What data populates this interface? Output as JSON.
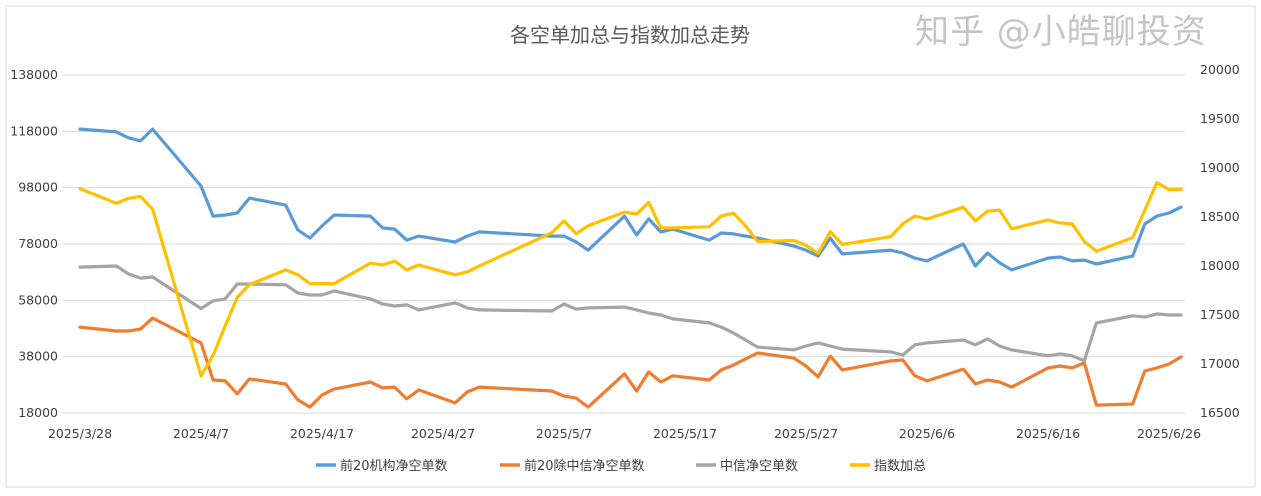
{
  "chart_data": {
    "type": "line",
    "title": "各空单加总与指数加总走势",
    "x": [
      "2025/3/28",
      "2025/3/31",
      "2025/4/1",
      "2025/4/2",
      "2025/4/3",
      "2025/4/7",
      "2025/4/8",
      "2025/4/9",
      "2025/4/10",
      "2025/4/11",
      "2025/4/14",
      "2025/4/15",
      "2025/4/16",
      "2025/4/17",
      "2025/4/18",
      "2025/4/21",
      "2025/4/22",
      "2025/4/23",
      "2025/4/24",
      "2025/4/25",
      "2025/4/28",
      "2025/4/29",
      "2025/4/30",
      "2025/5/6",
      "2025/5/7",
      "2025/5/8",
      "2025/5/9",
      "2025/5/12",
      "2025/5/13",
      "2025/5/14",
      "2025/5/15",
      "2025/5/16",
      "2025/5/19",
      "2025/5/20",
      "2025/5/21",
      "2025/5/22",
      "2025/5/23",
      "2025/5/26",
      "2025/5/27",
      "2025/5/28",
      "2025/5/29",
      "2025/5/30",
      "2025/6/3",
      "2025/6/4",
      "2025/6/5",
      "2025/6/6",
      "2025/6/9",
      "2025/6/10",
      "2025/6/11",
      "2025/6/12",
      "2025/6/13",
      "2025/6/16",
      "2025/6/17",
      "2025/6/18",
      "2025/6/19",
      "2025/6/20",
      "2025/6/23",
      "2025/6/24",
      "2025/6/25",
      "2025/6/26",
      "2025/6/27"
    ],
    "series": [
      {
        "name": "前20机构净空单数",
        "axis": "left",
        "color": "#5B9BD5",
        "values": [
          118800,
          117800,
          115700,
          114600,
          118800,
          98600,
          87900,
          88300,
          89000,
          94300,
          91800,
          83000,
          80100,
          84400,
          88300,
          87900,
          83700,
          83300,
          79400,
          80800,
          78700,
          80800,
          82300,
          80800,
          80800,
          78700,
          75800,
          87900,
          81200,
          86900,
          82300,
          83300,
          79400,
          81900,
          81600,
          80800,
          80100,
          77300,
          75800,
          73700,
          80100,
          74500,
          75800,
          74800,
          73000,
          72000,
          78000,
          70200,
          74800,
          71300,
          68800,
          73000,
          73400,
          72000,
          72300,
          70900,
          73700,
          85100,
          87900,
          89000,
          91100
        ]
      },
      {
        "name": "前20除中信净空单数",
        "axis": "left",
        "color": "#ED7D31",
        "values": [
          48500,
          47100,
          47100,
          47800,
          51700,
          42900,
          29700,
          29400,
          24800,
          30100,
          28300,
          22700,
          20100,
          24400,
          26500,
          29000,
          26900,
          27200,
          23000,
          26200,
          21600,
          25500,
          27200,
          25800,
          24000,
          23300,
          20100,
          31900,
          25800,
          32600,
          29000,
          31200,
          29700,
          33300,
          35000,
          37200,
          39300,
          37500,
          34700,
          30800,
          38200,
          33300,
          36500,
          36800,
          31200,
          29400,
          33600,
          28300,
          29700,
          29000,
          27200,
          34000,
          34700,
          34000,
          35800,
          20800,
          21200,
          32900,
          34000,
          35400,
          37900
        ]
      },
      {
        "name": "中信净空单数",
        "axis": "left",
        "color": "#A5A5A5",
        "values": [
          69800,
          70200,
          67400,
          65900,
          66300,
          55100,
          57800,
          58500,
          63800,
          63800,
          63500,
          60600,
          59900,
          59900,
          61300,
          58500,
          56700,
          56000,
          56400,
          54600,
          57100,
          55300,
          54600,
          54200,
          56700,
          54900,
          55300,
          55600,
          54600,
          53500,
          52800,
          51400,
          50000,
          48500,
          46400,
          43900,
          41400,
          40400,
          41800,
          42900,
          41800,
          40700,
          39700,
          38600,
          42200,
          42900,
          43900,
          42200,
          44300,
          41800,
          40400,
          38300,
          39000,
          38300,
          36500,
          50000,
          52500,
          52100,
          53200,
          52800,
          52800
        ]
      },
      {
        "name": "指数加总",
        "axis": "right",
        "color": "#FFC000",
        "values": [
          18790,
          18640,
          18690,
          18710,
          18580,
          16880,
          17090,
          17390,
          17680,
          17810,
          17960,
          17910,
          17820,
          17820,
          17820,
          18030,
          18010,
          18050,
          17960,
          18010,
          17910,
          17940,
          18000,
          18340,
          18460,
          18330,
          18410,
          18550,
          18530,
          18650,
          18390,
          18390,
          18400,
          18510,
          18540,
          18410,
          18250,
          18260,
          18210,
          18130,
          18350,
          18220,
          18300,
          18430,
          18510,
          18480,
          18600,
          18460,
          18560,
          18570,
          18380,
          18470,
          18440,
          18430,
          18250,
          18150,
          18290,
          18570,
          18850,
          18780,
          18780
        ]
      }
    ],
    "x_tick_labels": [
      "2025/3/28",
      "2025/4/7",
      "2025/4/17",
      "2025/4/27",
      "2025/5/7",
      "2025/5/17",
      "2025/5/27",
      "2025/6/6",
      "2025/6/16",
      "2025/6/26"
    ],
    "y_left": {
      "ticks": [
        "138000",
        "118000",
        "98000",
        "78000",
        "58000",
        "38000",
        "18000"
      ],
      "range": [
        18000,
        138000
      ]
    },
    "y_right": {
      "ticks": [
        "20000",
        "19500",
        "19000",
        "18500",
        "18000",
        "17500",
        "17000",
        "16500"
      ],
      "range": [
        16500,
        20000
      ]
    },
    "grid": true,
    "legend_position": "bottom"
  },
  "watermark": "知乎 @小皓聊投资"
}
